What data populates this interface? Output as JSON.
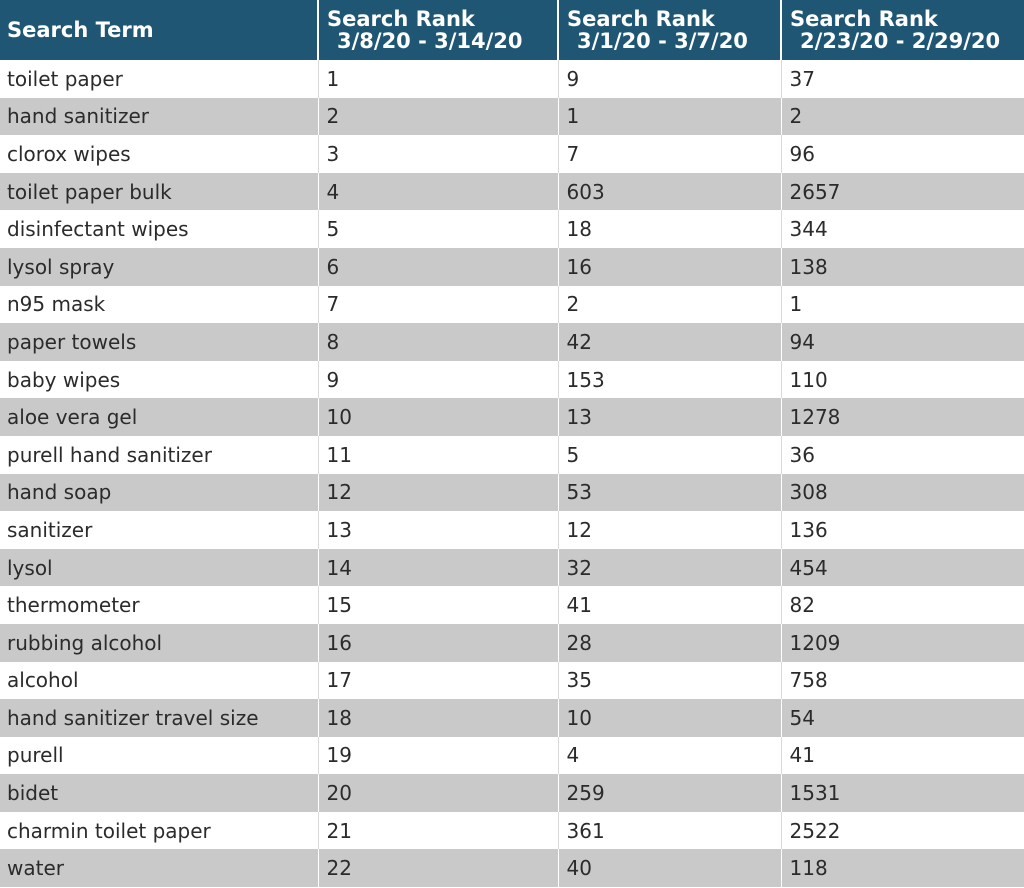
{
  "chart_data": {
    "type": "table",
    "columns": [
      "Search Term",
      "Search Rank 3/8/20 - 3/14/20",
      "Search Rank 3/1/20 - 3/7/20",
      "Search Rank 2/23/20 - 2/29/20"
    ],
    "header": {
      "term": "Search Term",
      "weeks": [
        {
          "line1": "Search Rank",
          "line2": "3/8/20 - 3/14/20"
        },
        {
          "line1": "Search Rank",
          "line2": "3/1/20 - 3/7/20"
        },
        {
          "line1": "Search Rank",
          "line2": "2/23/20 - 2/29/20"
        }
      ]
    },
    "rows": [
      {
        "term": "toilet paper",
        "ranks": [
          "1",
          "9",
          "37"
        ]
      },
      {
        "term": "hand sanitizer",
        "ranks": [
          "2",
          "1",
          "2"
        ]
      },
      {
        "term": "clorox wipes",
        "ranks": [
          "3",
          "7",
          "96"
        ]
      },
      {
        "term": "toilet paper bulk",
        "ranks": [
          "4",
          "603",
          "2657"
        ]
      },
      {
        "term": "disinfectant wipes",
        "ranks": [
          "5",
          "18",
          "344"
        ]
      },
      {
        "term": "lysol spray",
        "ranks": [
          "6",
          "16",
          "138"
        ]
      },
      {
        "term": "n95 mask",
        "ranks": [
          "7",
          "2",
          "1"
        ]
      },
      {
        "term": "paper towels",
        "ranks": [
          "8",
          "42",
          "94"
        ]
      },
      {
        "term": "baby wipes",
        "ranks": [
          "9",
          "153",
          "110"
        ]
      },
      {
        "term": "aloe vera gel",
        "ranks": [
          "10",
          "13",
          "1278"
        ]
      },
      {
        "term": "purell hand sanitizer",
        "ranks": [
          "11",
          "5",
          "36"
        ]
      },
      {
        "term": "hand soap",
        "ranks": [
          "12",
          "53",
          "308"
        ]
      },
      {
        "term": "sanitizer",
        "ranks": [
          "13",
          "12",
          "136"
        ]
      },
      {
        "term": "lysol",
        "ranks": [
          "14",
          "32",
          "454"
        ]
      },
      {
        "term": "thermometer",
        "ranks": [
          "15",
          "41",
          "82"
        ]
      },
      {
        "term": "rubbing alcohol",
        "ranks": [
          "16",
          "28",
          "1209"
        ]
      },
      {
        "term": "alcohol",
        "ranks": [
          "17",
          "35",
          "758"
        ]
      },
      {
        "term": "hand sanitizer travel size",
        "ranks": [
          "18",
          "10",
          "54"
        ]
      },
      {
        "term": "purell",
        "ranks": [
          "19",
          "4",
          "41"
        ]
      },
      {
        "term": "bidet",
        "ranks": [
          "20",
          "259",
          "1531"
        ]
      },
      {
        "term": "charmin toilet paper",
        "ranks": [
          "21",
          "361",
          "2522"
        ]
      },
      {
        "term": "water",
        "ranks": [
          "22",
          "40",
          "118"
        ]
      }
    ]
  },
  "colors": {
    "header_bg": "#1f5673",
    "header_text": "#ffffff",
    "row_alt_bg": "#c9c9c9",
    "row_bg": "#ffffff",
    "text": "#2b2b2b"
  }
}
